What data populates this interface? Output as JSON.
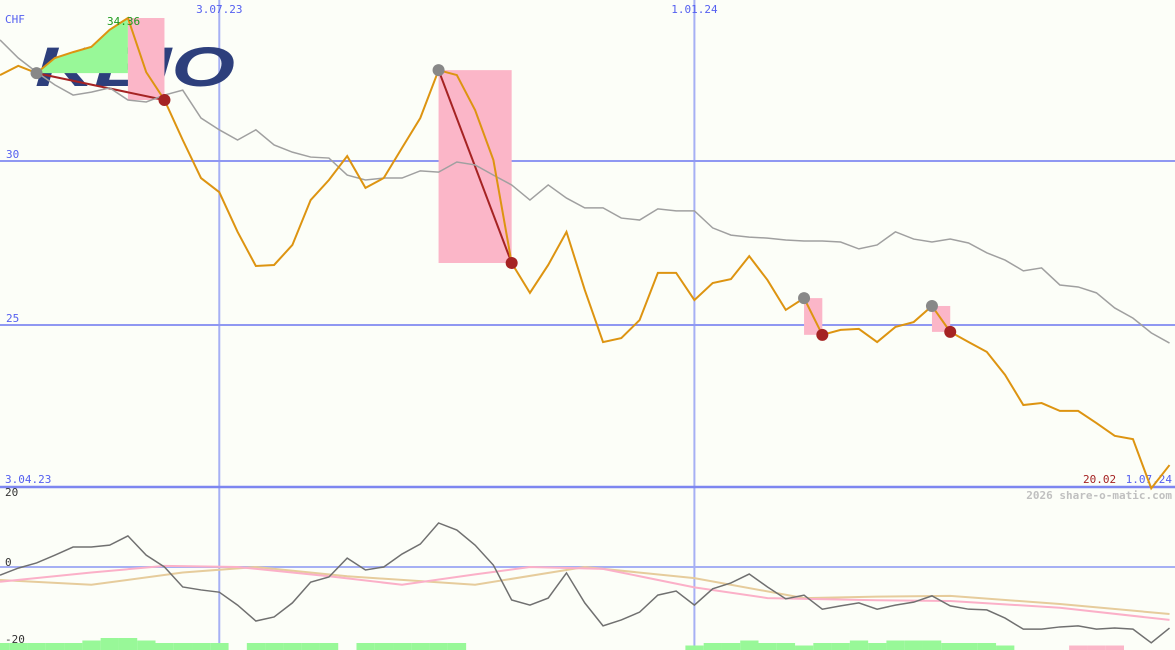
{
  "chart_data": {
    "type": "line",
    "currency_label": "CHF",
    "frequency": "weekly",
    "x_ticks": [
      {
        "label": "3.04.23",
        "week": 0
      },
      {
        "label": "3.07.23",
        "week": 12
      },
      {
        "label": "1.01.24",
        "week": 38
      },
      {
        "label": "1.07.24",
        "week": 64
      }
    ],
    "y_ticks": [
      30,
      25
    ],
    "ylim": [
      20.06,
      35.5
    ],
    "max_label": "34.36",
    "min_label": "20.02",
    "logo_text": "KEIO",
    "watermark": "2026 share-o-matic.com",
    "colors": {
      "price": "#dd9411",
      "benchmark": "#a0a0a0",
      "grid": "#7d86f0",
      "buy": "#888888",
      "sell": "#a52323",
      "gain": "#98f898",
      "loss": "#fbb6c8",
      "logo": "#2d3f7c"
    },
    "series": [
      {
        "key": "price",
        "values": [
          32.62,
          32.9,
          32.68,
          33.14,
          33.32,
          33.48,
          34.0,
          34.36,
          32.71,
          31.86,
          30.64,
          29.48,
          29.05,
          27.84,
          26.8,
          26.83,
          27.44,
          28.81,
          29.42,
          30.15,
          29.18,
          29.48,
          30.4,
          31.31,
          32.77,
          32.62,
          31.55,
          30.03,
          26.89,
          25.98,
          26.83,
          27.84,
          26.07,
          24.48,
          24.6,
          25.15,
          26.59,
          26.59,
          25.76,
          26.28,
          26.4,
          27.1,
          26.37,
          25.46,
          25.82,
          24.7,
          24.85,
          24.88,
          24.48,
          24.94,
          25.09,
          25.58,
          24.79,
          24.48,
          24.18,
          23.48,
          22.56,
          22.62,
          22.38,
          22.38,
          22.01,
          21.62,
          21.52,
          20.02,
          20.73
        ]
      },
      {
        "key": "benchmark",
        "values": [
          33.69,
          33.14,
          32.71,
          32.32,
          32.01,
          32.1,
          32.23,
          31.86,
          31.8,
          32.01,
          32.16,
          31.31,
          30.95,
          30.64,
          30.95,
          30.49,
          30.27,
          30.12,
          30.09,
          29.57,
          29.42,
          29.48,
          29.48,
          29.7,
          29.66,
          29.97,
          29.88,
          29.57,
          29.27,
          28.81,
          29.27,
          28.87,
          28.57,
          28.57,
          28.26,
          28.2,
          28.54,
          28.48,
          28.48,
          27.96,
          27.74,
          27.68,
          27.65,
          27.59,
          27.56,
          27.56,
          27.53,
          27.32,
          27.44,
          27.84,
          27.62,
          27.53,
          27.62,
          27.5,
          27.2,
          26.98,
          26.65,
          26.74,
          26.22,
          26.16,
          25.98,
          25.52,
          25.21,
          24.76,
          24.45
        ]
      }
    ],
    "signals": [
      {
        "buy_week": 2,
        "sell_week": 9
      },
      {
        "buy_week": 24,
        "sell_week": 28
      },
      {
        "buy_week": 44,
        "sell_week": 45
      },
      {
        "buy_week": 51,
        "sell_week": 52
      }
    ],
    "indicator": {
      "y_ticks": [
        20,
        0,
        -20
      ],
      "ylim": [
        -22,
        22
      ],
      "colors": {
        "momentum": "#707070",
        "avg_fast": "#fbb0c8",
        "avg_slow": "#e6cc9c",
        "hist_pos": "#98f898",
        "hist_neg": "#fbb6c8"
      },
      "momentum": [
        -2.2,
        -0.3,
        1.1,
        3.2,
        5.4,
        5.4,
        5.9,
        8.4,
        3.2,
        0,
        -5.4,
        -6.2,
        -6.8,
        -10.3,
        -14.6,
        -13.5,
        -9.7,
        -4.1,
        -2.7,
        2.4,
        -0.8,
        0,
        3.5,
        6.2,
        11.9,
        10.0,
        5.9,
        0.5,
        -8.9,
        -10.3,
        -8.4,
        -1.6,
        -9.7,
        -15.9,
        -14.3,
        -12.2,
        -7.6,
        -6.5,
        -10.3,
        -5.9,
        -4.3,
        -1.9,
        -5.4,
        -8.6,
        -7.6,
        -11.4,
        -10.5,
        -9.7,
        -11.4,
        -10.3,
        -9.5,
        -7.8,
        -10.5,
        -11.4,
        -11.6,
        -13.8,
        -16.8,
        -16.8,
        -16.2,
        -15.9,
        -16.8,
        -16.5,
        -16.8,
        -20.5,
        -16.5
      ],
      "avg_fast": [
        [
          0,
          -4
        ],
        [
          5,
          -1.5
        ],
        [
          9,
          0.3
        ],
        [
          13,
          0
        ],
        [
          18,
          -2.5
        ],
        [
          22,
          -4.8
        ],
        [
          26,
          -2
        ],
        [
          29,
          0
        ],
        [
          33,
          -0.5
        ],
        [
          38,
          -5.5
        ],
        [
          42,
          -8.4
        ],
        [
          48,
          -9
        ],
        [
          52,
          -9.2
        ],
        [
          58,
          -11
        ],
        [
          64,
          -14.3
        ]
      ],
      "avg_slow": [
        [
          0,
          -3.5
        ],
        [
          5,
          -4.8
        ],
        [
          10,
          -1.5
        ],
        [
          14,
          0
        ],
        [
          19,
          -2.5
        ],
        [
          26,
          -4.8
        ],
        [
          32,
          0
        ],
        [
          38,
          -3
        ],
        [
          44,
          -8.4
        ],
        [
          48,
          -8
        ],
        [
          52,
          -7.8
        ],
        [
          58,
          -10
        ],
        [
          64,
          -12.7
        ]
      ],
      "histogram": [
        2,
        2,
        2,
        2,
        2,
        3,
        4,
        4,
        3,
        2,
        2,
        2,
        2,
        0,
        2,
        2,
        2,
        2,
        2,
        0,
        2,
        2,
        2,
        2,
        2,
        2,
        0,
        0,
        0,
        0,
        0,
        0,
        0,
        0,
        0,
        0,
        0,
        0,
        1,
        2,
        2,
        3,
        2,
        2,
        1,
        2,
        2,
        3,
        2,
        3,
        3,
        3,
        2,
        2,
        2,
        1,
        0,
        0,
        0,
        -1,
        -1,
        -1,
        0,
        0,
        0
      ]
    }
  }
}
